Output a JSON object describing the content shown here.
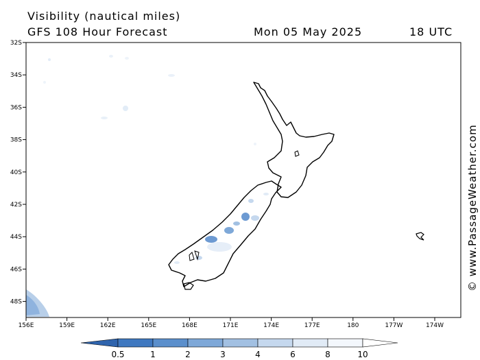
{
  "header": {
    "title": "Visibility (nautical miles)",
    "subtitle": "GFS 108 Hour Forecast",
    "date": "Mon 05 May 2025",
    "time": "18 UTC"
  },
  "credit": "© www.PassageWeather.com",
  "map": {
    "lat_labels": [
      "32S",
      "34S",
      "36S",
      "38S",
      "40S",
      "42S",
      "44S",
      "46S",
      "48S"
    ],
    "lon_labels": [
      "156E",
      "159E",
      "162E",
      "165E",
      "168E",
      "171E",
      "174E",
      "177E",
      "180",
      "177W",
      "174W"
    ]
  },
  "legend": {
    "labels": [
      "0.5",
      "1",
      "2",
      "3",
      "4",
      "6",
      "8",
      "10"
    ],
    "colors": [
      "#3f78c0",
      "#5b8fcc",
      "#7ea8d8",
      "#a2c0e2",
      "#c5d8ee",
      "#e1ebf6",
      "#f3f7fc",
      "#ffffff"
    ]
  }
}
